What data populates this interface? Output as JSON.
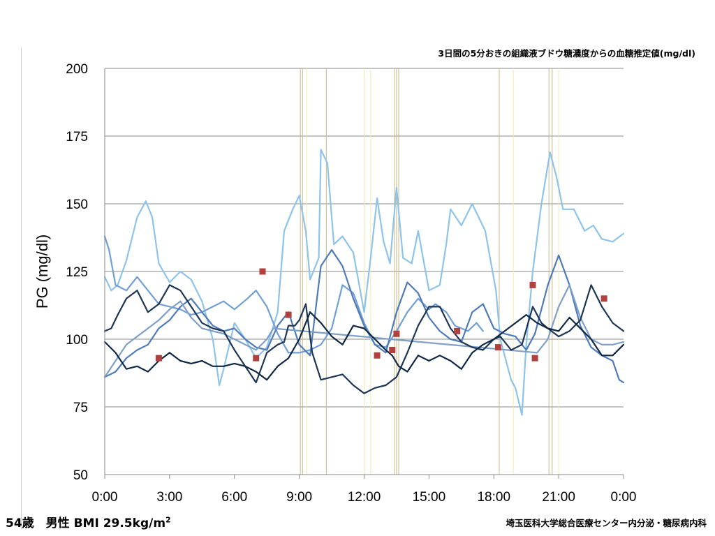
{
  "slide": {
    "title": "3日間の5分おきの組織液ブドウ糖濃度からの血糖推定値(mg/dl)",
    "patient_prefix": "54歳　男性 BMI 29.5kg/m",
    "patient_sup": "2",
    "institution": "埼玉医科大学総合医療センター内分泌・糖尿病内科"
  },
  "chart_data": {
    "type": "line",
    "title": "3日間の5分おきの組織液ブドウ糖濃度からの血糖推定値(mg/dl)",
    "xlabel": "",
    "ylabel": "PG (mg/dl)",
    "ylim": [
      50,
      200
    ],
    "xlim": [
      0,
      24
    ],
    "x_ticks": [
      "0:00",
      "3:00",
      "6:00",
      "9:00",
      "12:00",
      "15:00",
      "18:00",
      "21:00",
      "0:00"
    ],
    "y_ticks": [
      50,
      75,
      100,
      125,
      150,
      175,
      200
    ],
    "grid": "horizontal",
    "legend": "none",
    "series": [
      {
        "color": "#8ec3ea",
        "points": [
          [
            0,
            123
          ],
          [
            0.3,
            118
          ],
          [
            0.6,
            120
          ],
          [
            1,
            129
          ],
          [
            1.5,
            145
          ],
          [
            1.9,
            151
          ],
          [
            2.2,
            145
          ],
          [
            2.5,
            128
          ],
          [
            3,
            121
          ],
          [
            3.5,
            125
          ],
          [
            4,
            122
          ],
          [
            4.5,
            114
          ],
          [
            5,
            100
          ],
          [
            5.3,
            83
          ],
          [
            5.5,
            89
          ],
          [
            6,
            106
          ],
          [
            6.5,
            100
          ],
          [
            7,
            93
          ],
          [
            7.5,
            97
          ],
          [
            8,
            110
          ],
          [
            8.3,
            140
          ],
          [
            8.7,
            148
          ],
          [
            9,
            153
          ],
          [
            9.3,
            140
          ],
          [
            9.5,
            122
          ],
          [
            9.9,
            130
          ],
          [
            10,
            170
          ],
          [
            10.3,
            165
          ],
          [
            10.6,
            135
          ],
          [
            11,
            138
          ],
          [
            11.5,
            132
          ],
          [
            12,
            110
          ],
          [
            12.3,
            130
          ],
          [
            12.6,
            152
          ],
          [
            12.9,
            136
          ],
          [
            13.2,
            128
          ],
          [
            13.5,
            156
          ],
          [
            13.8,
            130
          ],
          [
            14.2,
            128
          ],
          [
            14.5,
            140
          ],
          [
            15,
            118
          ],
          [
            15.5,
            120
          ],
          [
            15.8,
            135
          ],
          [
            16,
            148
          ],
          [
            16.5,
            142
          ],
          [
            17,
            150
          ],
          [
            17.6,
            140
          ],
          [
            18.1,
            118
          ],
          [
            18.3,
            100
          ],
          [
            18.8,
            85
          ],
          [
            19,
            82
          ],
          [
            19.3,
            72
          ],
          [
            19.5,
            98
          ],
          [
            19.8,
            125
          ],
          [
            20.2,
            150
          ],
          [
            20.6,
            169
          ],
          [
            20.9,
            160
          ],
          [
            21.2,
            148
          ],
          [
            21.7,
            148
          ],
          [
            22.2,
            140
          ],
          [
            22.6,
            142
          ],
          [
            23,
            137
          ],
          [
            23.5,
            136
          ],
          [
            24,
            139
          ]
        ]
      },
      {
        "color": "#6f9fd6",
        "points": [
          [
            0,
            138
          ],
          [
            0.2,
            133
          ],
          [
            0.5,
            120
          ],
          [
            1,
            118
          ],
          [
            1.5,
            123
          ],
          [
            2,
            118
          ],
          [
            2.5,
            113
          ],
          [
            3,
            112
          ],
          [
            3.5,
            111
          ],
          [
            4,
            109
          ],
          [
            4.5,
            110
          ],
          [
            5,
            112
          ],
          [
            5.5,
            114
          ],
          [
            6,
            111
          ],
          [
            6.6,
            115
          ],
          [
            7,
            118
          ],
          [
            7.5,
            112
          ],
          [
            8,
            102
          ],
          [
            8.5,
            95
          ],
          [
            9,
            95
          ],
          [
            9.5,
            96
          ],
          [
            10,
            98
          ],
          [
            10.5,
            104
          ],
          [
            11,
            120
          ],
          [
            11.5,
            117
          ],
          [
            12,
            106
          ],
          [
            12.5,
            98
          ],
          [
            13,
            97
          ],
          [
            13.5,
            103
          ],
          [
            14,
            110
          ],
          [
            14.5,
            115
          ],
          [
            15,
            111
          ],
          [
            15.3,
            113
          ],
          [
            15.8,
            110
          ],
          [
            16.2,
            105
          ],
          [
            16.8,
            103
          ],
          [
            17.2,
            106
          ],
          [
            17.5,
            103
          ]
        ]
      },
      {
        "color": "#4e7bb8",
        "points": [
          [
            0,
            86
          ],
          [
            0.5,
            88
          ],
          [
            1,
            93
          ],
          [
            1.5,
            96
          ],
          [
            2,
            98
          ],
          [
            2.5,
            104
          ],
          [
            3,
            107
          ],
          [
            3.5,
            112
          ],
          [
            4,
            115
          ],
          [
            4.5,
            110
          ],
          [
            5,
            105
          ],
          [
            5.5,
            103
          ],
          [
            6,
            104
          ],
          [
            6.5,
            100
          ],
          [
            7,
            97
          ],
          [
            7.5,
            96
          ],
          [
            8,
            105
          ],
          [
            8.5,
            110
          ],
          [
            9,
            98
          ],
          [
            9.5,
            94
          ],
          [
            10,
            127
          ],
          [
            10.5,
            133
          ],
          [
            11,
            127
          ],
          [
            11.5,
            115
          ],
          [
            12,
            105
          ],
          [
            12.5,
            98
          ],
          [
            13,
            95
          ],
          [
            13.5,
            110
          ],
          [
            14,
            121
          ],
          [
            14.5,
            117
          ],
          [
            15,
            108
          ],
          [
            15.5,
            103
          ],
          [
            16,
            100
          ],
          [
            16.5,
            99
          ],
          [
            17,
            110
          ],
          [
            17.5,
            113
          ],
          [
            18,
            104
          ],
          [
            18.5,
            102
          ],
          [
            19,
            101
          ],
          [
            19.5,
            96
          ],
          [
            19.9,
            102
          ],
          [
            20.5,
            120
          ],
          [
            21,
            131
          ],
          [
            21.5,
            120
          ],
          [
            22,
            105
          ],
          [
            22.5,
            97
          ],
          [
            23,
            94
          ],
          [
            23.5,
            92
          ],
          [
            23.8,
            85
          ],
          [
            24,
            84
          ]
        ]
      },
      {
        "color": "#7e9fc7",
        "points": [
          [
            0,
            86
          ],
          [
            0.5,
            92
          ],
          [
            1,
            98
          ],
          [
            1.5,
            101
          ],
          [
            2,
            104
          ],
          [
            2.5,
            107
          ],
          [
            3,
            111
          ],
          [
            3.5,
            114
          ],
          [
            4,
            108
          ],
          [
            4.5,
            104
          ],
          [
            5,
            103
          ],
          [
            5.5,
            102
          ],
          [
            6,
            100
          ],
          [
            6.5,
            98
          ],
          [
            7,
            96
          ],
          [
            7.5,
            100
          ],
          [
            7.8,
            104
          ],
          [
            20,
            95
          ],
          [
            20.5,
            100
          ],
          [
            21,
            112
          ],
          [
            21.5,
            120
          ],
          [
            22,
            108
          ],
          [
            22.5,
            100
          ],
          [
            23,
            98
          ],
          [
            23.5,
            98
          ],
          [
            24,
            99
          ]
        ]
      },
      {
        "color": "#1c3555",
        "points": [
          [
            0,
            103
          ],
          [
            0.3,
            104
          ],
          [
            0.6,
            109
          ],
          [
            1,
            115
          ],
          [
            1.5,
            118
          ],
          [
            2,
            110
          ],
          [
            2.5,
            113
          ],
          [
            3,
            120
          ],
          [
            3.5,
            118
          ],
          [
            4,
            112
          ],
          [
            4.5,
            106
          ],
          [
            5,
            104
          ],
          [
            5.5,
            103
          ],
          [
            6,
            96
          ],
          [
            6.5,
            90
          ],
          [
            7,
            84
          ],
          [
            7.5,
            95
          ],
          [
            8,
            98
          ],
          [
            8.3,
            99
          ],
          [
            8.5,
            105
          ],
          [
            8.8,
            105
          ],
          [
            9,
            107
          ],
          [
            9.3,
            113
          ],
          [
            9.6,
            95
          ],
          [
            10,
            85
          ],
          [
            10.5,
            86
          ],
          [
            11,
            87
          ],
          [
            11.5,
            83
          ],
          [
            12,
            80
          ],
          [
            12.5,
            82
          ],
          [
            13,
            83
          ],
          [
            13.5,
            86
          ],
          [
            14,
            95
          ],
          [
            14.5,
            105
          ],
          [
            15,
            112
          ],
          [
            15.5,
            112
          ],
          [
            16,
            104
          ],
          [
            16.5,
            99
          ],
          [
            17,
            97
          ],
          [
            17.5,
            96
          ],
          [
            18,
            100
          ],
          [
            18.3,
            101
          ],
          [
            18.8,
            96
          ],
          [
            19.3,
            98
          ],
          [
            19.8,
            112
          ],
          [
            20.2,
            106
          ],
          [
            20.5,
            104
          ],
          [
            21,
            101
          ],
          [
            21.5,
            103
          ],
          [
            22,
            107
          ],
          [
            22.5,
            120
          ],
          [
            23,
            112
          ],
          [
            23.5,
            106
          ],
          [
            24,
            103
          ]
        ]
      },
      {
        "color": "#0f2744",
        "points": [
          [
            0,
            99
          ],
          [
            0.5,
            95
          ],
          [
            1,
            89
          ],
          [
            1.5,
            90
          ],
          [
            2,
            88
          ],
          [
            2.5,
            92
          ],
          [
            3,
            95
          ],
          [
            3.5,
            92
          ],
          [
            4,
            91
          ],
          [
            4.5,
            92
          ],
          [
            5,
            90
          ],
          [
            5.5,
            90
          ],
          [
            6,
            91
          ],
          [
            6.5,
            90
          ],
          [
            7,
            88
          ],
          [
            7.5,
            85
          ],
          [
            8,
            90
          ],
          [
            8.5,
            93
          ],
          [
            9,
            100
          ],
          [
            9.5,
            110
          ],
          [
            10,
            106
          ],
          [
            10.5,
            101
          ],
          [
            11,
            98
          ],
          [
            11.5,
            105
          ],
          [
            12,
            104
          ],
          [
            12.5,
            100
          ],
          [
            13,
            96
          ],
          [
            13.3,
            94
          ],
          [
            13.6,
            90
          ],
          [
            14,
            88
          ],
          [
            14.5,
            94
          ],
          [
            15,
            92
          ],
          [
            15.5,
            94
          ],
          [
            16,
            92
          ],
          [
            16.5,
            89
          ],
          [
            17,
            95
          ],
          [
            17.5,
            98
          ],
          [
            18,
            100
          ],
          [
            18.5,
            103
          ],
          [
            19,
            106
          ],
          [
            19.5,
            109
          ],
          [
            20,
            106
          ],
          [
            20.5,
            104
          ],
          [
            21,
            103
          ],
          [
            21.5,
            108
          ],
          [
            22,
            104
          ],
          [
            22.5,
            100
          ],
          [
            23,
            94
          ],
          [
            23.5,
            94
          ],
          [
            24,
            98
          ]
        ]
      }
    ],
    "measurements": {
      "color": "#b0413e",
      "points": [
        [
          2.5,
          93
        ],
        [
          7.0,
          93
        ],
        [
          7.3,
          125
        ],
        [
          8.5,
          109
        ],
        [
          12.6,
          94
        ],
        [
          13.3,
          96
        ],
        [
          13.5,
          102
        ],
        [
          16.3,
          103
        ],
        [
          18.2,
          97
        ],
        [
          19.8,
          120
        ],
        [
          19.9,
          93
        ],
        [
          23.1,
          115
        ]
      ]
    },
    "vertical_markers": [
      {
        "color": "#c9b78a",
        "x": [
          9.05,
          9.15,
          10.25,
          13.4,
          13.5,
          13.6,
          18.25,
          20.55,
          20.7
        ]
      },
      {
        "color": "#f2ebb0",
        "x": [
          9.35,
          12.0,
          12.3,
          18.9,
          21.0
        ]
      }
    ]
  }
}
